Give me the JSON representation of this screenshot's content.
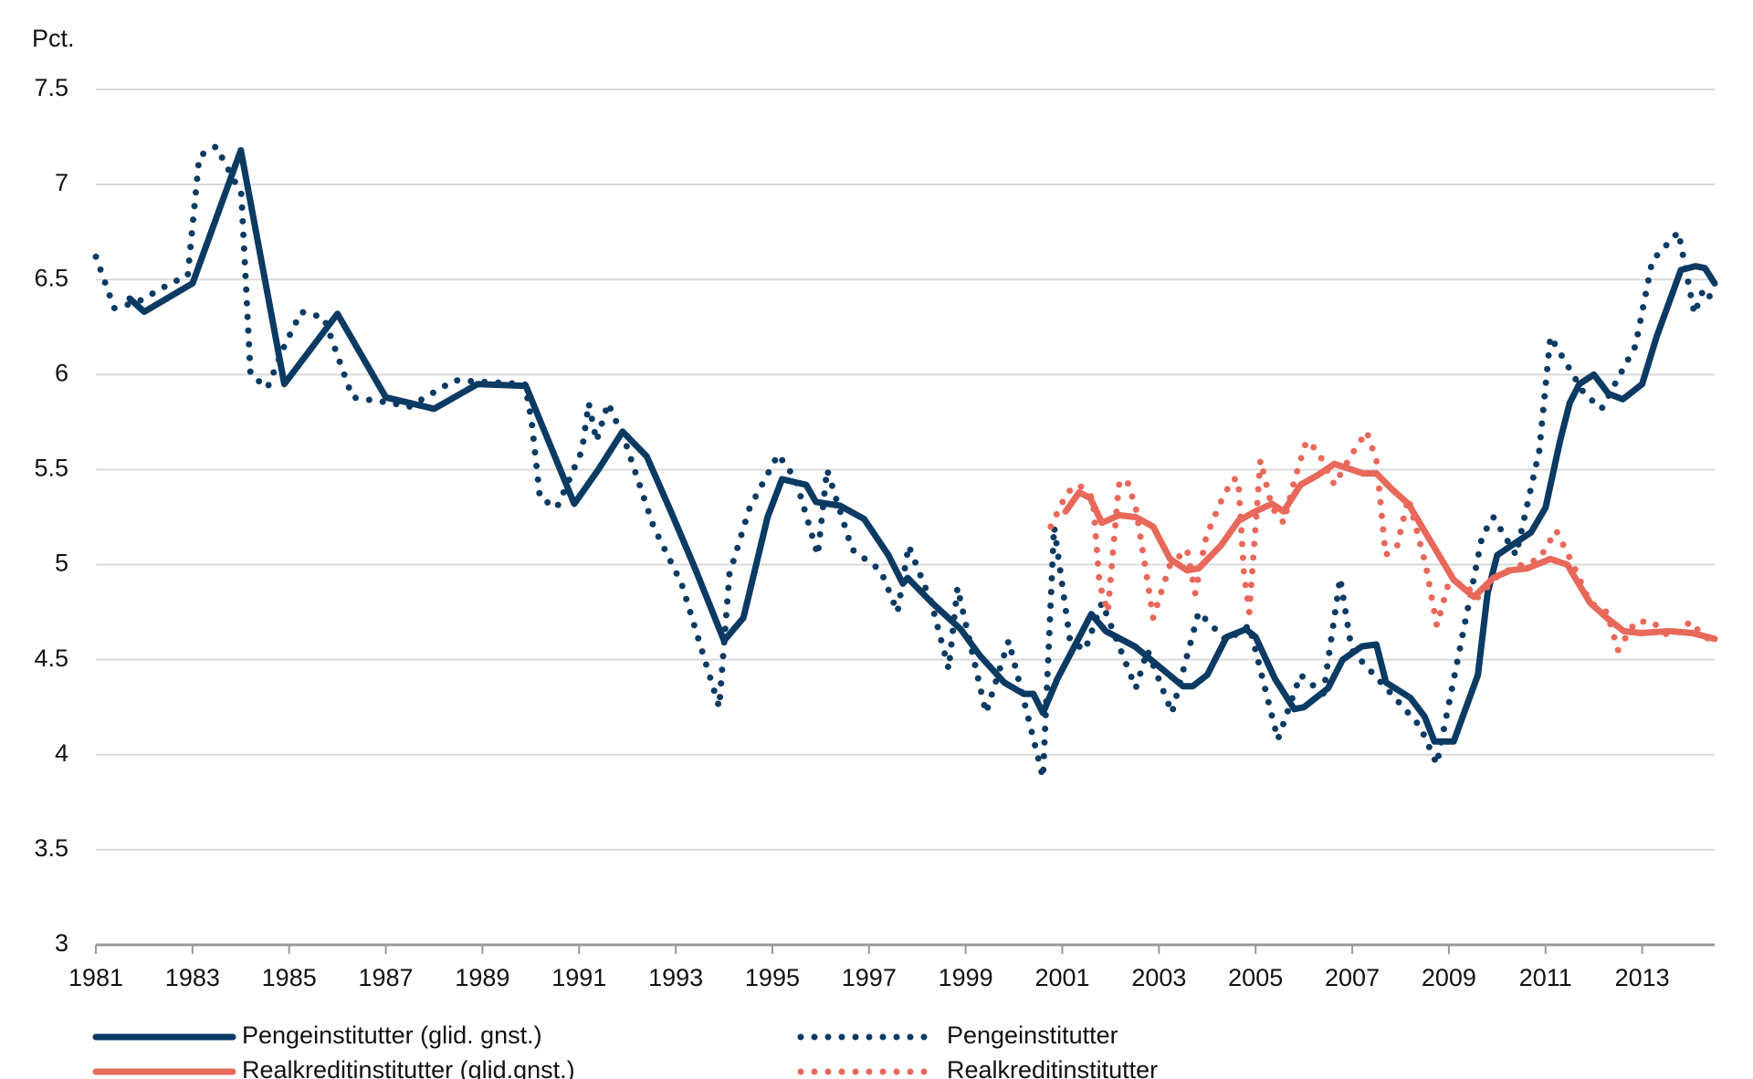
{
  "chart_data": {
    "type": "line",
    "y_unit_label": "Pct.",
    "xlim": [
      1981,
      2014.5
    ],
    "xticks": [
      1981,
      1983,
      1985,
      1987,
      1989,
      1991,
      1993,
      1995,
      1997,
      1999,
      2001,
      2003,
      2005,
      2007,
      2009,
      2011,
      2013
    ],
    "ylim": [
      3,
      7.5
    ],
    "yticks": [
      3,
      3.5,
      4,
      4.5,
      5,
      5.5,
      6,
      6.5,
      7,
      7.5
    ],
    "grid": true,
    "series": [
      {
        "name": "Pengeinstitutter (glid. gnst.)",
        "color": "#0b3a63",
        "dash": "solid",
        "x": [
          1981.7,
          1982.0,
          1983.0,
          1984.0,
          1984.9,
          1986.0,
          1987.0,
          1988.0,
          1988.9,
          1989.9,
          1990.9,
          1991.4,
          1991.9,
          1992.4,
          1992.9,
          1993.4,
          1994.0,
          1994.4,
          1994.9,
          1995.2,
          1995.7,
          1995.9,
          1996.4,
          1996.9,
          1997.4,
          1997.7,
          1997.8,
          1998.3,
          1998.9,
          1999.3,
          1999.8,
          2000.2,
          2000.4,
          2000.6,
          2000.9,
          2001.6,
          2001.9,
          2002.5,
          2003.5,
          2003.7,
          2004.0,
          2004.4,
          2004.8,
          2005.0,
          2005.4,
          2005.8,
          2006.0,
          2006.5,
          2006.8,
          2007.2,
          2007.5,
          2007.7,
          2008.2,
          2008.5,
          2008.7,
          2009.1,
          2009.6,
          2009.8,
          2010.0,
          2010.7,
          2011.0,
          2011.3,
          2011.5,
          2011.7,
          2012.0,
          2012.3,
          2012.6,
          2013.0,
          2013.3,
          2013.8,
          2014.1,
          2014.3,
          2014.5
        ],
        "values": [
          6.4,
          6.33,
          6.48,
          7.18,
          5.95,
          6.32,
          5.88,
          5.82,
          5.95,
          5.94,
          5.32,
          5.5,
          5.7,
          5.57,
          5.28,
          4.98,
          4.6,
          4.72,
          5.25,
          5.45,
          5.42,
          5.33,
          5.31,
          5.24,
          5.05,
          4.9,
          4.93,
          4.8,
          4.66,
          4.52,
          4.38,
          4.32,
          4.32,
          4.22,
          4.4,
          4.74,
          4.65,
          4.57,
          4.36,
          4.36,
          4.42,
          4.62,
          4.66,
          4.62,
          4.4,
          4.24,
          4.25,
          4.35,
          4.5,
          4.57,
          4.58,
          4.38,
          4.3,
          4.2,
          4.07,
          4.07,
          4.42,
          4.85,
          5.05,
          5.17,
          5.3,
          5.65,
          5.85,
          5.95,
          6.0,
          5.9,
          5.87,
          5.95,
          6.2,
          6.55,
          6.57,
          6.56,
          6.48
        ]
      },
      {
        "name": "Pengeinstitutter",
        "color": "#0b3a63",
        "dash": "dotted",
        "x": [
          1981.0,
          1981.38,
          1981.85,
          1982.55,
          1982.9,
          1983.14,
          1983.49,
          1984.01,
          1984.2,
          1984.55,
          1984.9,
          1985.25,
          1985.72,
          1986.31,
          1987.13,
          1987.48,
          1988.42,
          1989.88,
          1990.02,
          1990.19,
          1990.54,
          1991.06,
          1991.2,
          1991.36,
          1991.6,
          1991.95,
          1992.54,
          1993.12,
          1993.48,
          1993.9,
          1994.11,
          1994.53,
          1995.12,
          1995.48,
          1995.94,
          1996.13,
          1996.65,
          1997.24,
          1997.59,
          1997.82,
          1998.29,
          1998.65,
          1998.83,
          1999.42,
          1999.89,
          2000.29,
          2000.6,
          2000.83,
          2001.16,
          2001.47,
          2001.82,
          2002.52,
          2002.76,
          2003.27,
          2003.82,
          2004.4,
          2004.87,
          2005.46,
          2005.93,
          2006.4,
          2006.75,
          2006.99,
          2007.81,
          2008.4,
          2008.75,
          2009.22,
          2009.69,
          2009.92,
          2010.39,
          2010.87,
          2011.1,
          2011.8,
          2012.16,
          2012.86,
          2013.21,
          2013.75,
          2014.08,
          2014.27,
          2014.5
        ],
        "values": [
          6.62,
          6.35,
          6.38,
          6.48,
          6.52,
          7.15,
          7.2,
          6.95,
          6.0,
          5.93,
          6.15,
          6.33,
          6.3,
          5.88,
          5.85,
          5.83,
          5.97,
          5.95,
          5.75,
          5.35,
          5.3,
          5.6,
          5.85,
          5.65,
          5.85,
          5.65,
          5.2,
          4.9,
          4.6,
          4.25,
          4.95,
          5.3,
          5.58,
          5.45,
          5.05,
          5.5,
          5.08,
          4.97,
          4.75,
          5.1,
          4.8,
          4.45,
          4.88,
          4.22,
          4.6,
          4.2,
          3.88,
          5.2,
          4.6,
          4.55,
          4.8,
          4.35,
          4.55,
          4.22,
          4.75,
          4.6,
          4.68,
          4.08,
          4.42,
          4.32,
          4.93,
          4.55,
          4.32,
          4.15,
          3.95,
          4.55,
          5.15,
          5.25,
          5.05,
          5.6,
          6.2,
          5.9,
          5.82,
          6.15,
          6.6,
          6.75,
          6.32,
          6.45,
          6.38
        ]
      },
      {
        "name": "Realkreditinstitutter (glid.gnst.)",
        "color": "#e8685a",
        "dash": "solid",
        "x": [
          2001.07,
          2001.35,
          2001.58,
          2001.82,
          2002.17,
          2002.52,
          2002.88,
          2003.23,
          2003.58,
          2003.82,
          2004.28,
          2004.64,
          2004.99,
          2005.34,
          2005.58,
          2005.93,
          2006.28,
          2006.63,
          2006.99,
          2007.22,
          2007.5,
          2007.81,
          2008.16,
          2008.63,
          2009.1,
          2009.52,
          2009.92,
          2010.27,
          2010.62,
          2011.1,
          2011.45,
          2011.92,
          2012.27,
          2012.62,
          2012.97,
          2013.56,
          2014.04,
          2014.5
        ],
        "values": [
          5.28,
          5.38,
          5.35,
          5.22,
          5.26,
          5.25,
          5.2,
          5.03,
          4.97,
          4.98,
          5.1,
          5.23,
          5.28,
          5.32,
          5.28,
          5.42,
          5.47,
          5.53,
          5.5,
          5.48,
          5.48,
          5.4,
          5.32,
          5.12,
          4.92,
          4.83,
          4.93,
          4.97,
          4.98,
          5.03,
          5.0,
          4.8,
          4.72,
          4.65,
          4.64,
          4.65,
          4.64,
          4.61
        ]
      },
      {
        "name": "Realkreditinstitutter",
        "color": "#e8685a",
        "dash": "dotted",
        "x": [
          2000.76,
          2001.1,
          2001.35,
          2001.63,
          2001.77,
          2001.94,
          2002.17,
          2002.33,
          2002.52,
          2002.71,
          2002.88,
          2003.04,
          2003.23,
          2003.58,
          2003.75,
          2003.98,
          2004.28,
          2004.52,
          2004.64,
          2004.76,
          2004.87,
          2005.1,
          2005.34,
          2005.58,
          2005.81,
          2006.05,
          2006.28,
          2006.63,
          2006.99,
          2007.3,
          2007.5,
          2007.69,
          2007.93,
          2008.16,
          2008.52,
          2008.75,
          2008.99,
          2009.34,
          2009.57,
          2010.04,
          2010.51,
          2010.87,
          2011.22,
          2011.57,
          2011.92,
          2012.27,
          2012.5,
          2012.86,
          2013.21,
          2013.56,
          2014.01,
          2014.27,
          2014.5
        ],
        "values": [
          5.2,
          5.38,
          5.42,
          5.35,
          4.9,
          4.75,
          5.42,
          5.45,
          5.3,
          5.0,
          4.72,
          4.85,
          5.0,
          5.08,
          4.85,
          5.15,
          5.33,
          5.45,
          5.45,
          4.95,
          4.75,
          5.55,
          5.3,
          5.22,
          5.45,
          5.65,
          5.6,
          5.42,
          5.58,
          5.7,
          5.55,
          5.05,
          5.1,
          5.35,
          5.0,
          4.68,
          4.9,
          4.9,
          4.82,
          4.95,
          5.0,
          5.03,
          5.18,
          5.0,
          4.8,
          4.75,
          4.55,
          4.7,
          4.7,
          4.62,
          4.7,
          4.62,
          4.6
        ]
      }
    ]
  }
}
